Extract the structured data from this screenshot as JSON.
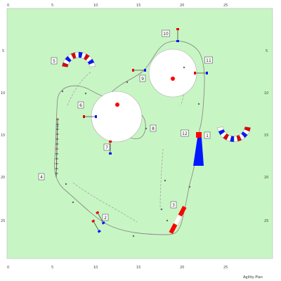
{
  "course": {
    "field_color": "#c8f5c4",
    "path_color": "#8c8c8c",
    "footer": "Agility Plan",
    "axis_ticks": [
      "0",
      "5",
      "10",
      "15",
      "20",
      "25"
    ],
    "y_ticks": [
      "5",
      "10",
      "15",
      "20",
      "25"
    ],
    "obstacle_numbers": [
      "1",
      "2",
      "3",
      "4",
      "5",
      "6",
      "7",
      "8",
      "9",
      "10",
      "11",
      "12"
    ],
    "colors": {
      "tunnel_red": "#e00000",
      "tunnel_blue": "#0018ff",
      "tunnel_white": "#ffffff",
      "table_red": "#ff0000",
      "chute_blue": "#0018ff"
    }
  }
}
